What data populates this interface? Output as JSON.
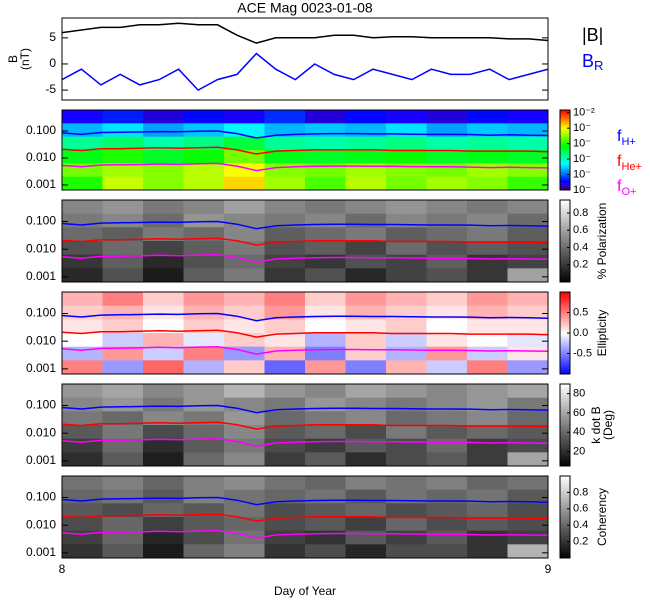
{
  "title": "ACE Mag 0023-01-08",
  "chart_data": [
    {
      "type": "line",
      "xlim": [
        8,
        9
      ],
      "ylim": [
        -6.9,
        8.8
      ],
      "yticks": [
        -5,
        0,
        5
      ],
      "ylabel": [
        "B",
        "(nT)"
      ],
      "x": [
        8.0,
        8.04,
        8.08,
        8.12,
        8.16,
        8.2,
        8.24,
        8.28,
        8.32,
        8.36,
        8.4,
        8.44,
        8.48,
        8.52,
        8.56,
        8.6,
        8.64,
        8.68,
        8.72,
        8.76,
        8.8,
        8.84,
        8.88,
        8.92,
        8.96,
        9.0
      ],
      "series": [
        {
          "name": "|B|",
          "color": "#000000",
          "values": [
            6,
            6.5,
            7,
            7,
            7.5,
            7.5,
            7.8,
            7.5,
            7.5,
            5.5,
            4,
            5,
            5,
            5,
            5.5,
            5.5,
            5,
            5.2,
            5.2,
            5,
            5,
            5,
            5,
            4.8,
            4.8,
            4.5
          ]
        },
        {
          "name": "B",
          "name_sub": "R",
          "color": "#0000ff",
          "values": [
            -3,
            -1,
            -4,
            -2,
            -4,
            -3,
            -1,
            -5,
            -3,
            -2,
            2,
            -1,
            -3,
            0,
            -2,
            -3,
            -1,
            -2,
            -3,
            -1,
            -2,
            -2,
            -1,
            -3,
            -2,
            -1
          ]
        }
      ]
    },
    {
      "type": "heatmap",
      "xlim": [
        8,
        9
      ],
      "ylim": [
        0.00065,
        0.6
      ],
      "ylog": true,
      "yticks": [
        {
          "value": 0.1,
          "label": "0.100"
        },
        {
          "value": 0.01,
          "label": "0.010"
        },
        {
          "value": 0.001,
          "label": "0.001"
        }
      ],
      "colormap": "rainbow",
      "zlog": true,
      "zlim": [
        1e-07,
        0.015
      ],
      "zticks": [
        {
          "value": 0.01,
          "label": "10⁻²"
        },
        {
          "value": 0.001,
          "label": "10⁻"
        },
        {
          "value": 0.0001,
          "label": "10⁻"
        },
        {
          "value": 1e-05,
          "label": "10⁻"
        },
        {
          "value": 1e-06,
          "label": "10⁻"
        },
        {
          "value": 1e-07,
          "label": "10⁻"
        }
      ],
      "z": [
        [
          3e-07,
          5e-07,
          2.5e-07,
          4e-07,
          3e-07,
          6e-07,
          2.5e-07,
          4e-07,
          3e-07,
          2.5e-07,
          4e-07,
          3e-07
        ],
        [
          2.5e-06,
          4e-06,
          2e-06,
          3e-06,
          5e-06,
          2.5e-06,
          3e-06,
          2.5e-06,
          4e-06,
          2e-06,
          3e-06,
          2.5e-06
        ],
        [
          1.6e-05,
          2.5e-05,
          1.3e-05,
          2e-05,
          4e-05,
          1.6e-05,
          1.3e-05,
          1.6e-05,
          2e-05,
          1.3e-05,
          1.6e-05,
          1.3e-05
        ],
        [
          6e-05,
          0.0001,
          5e-05,
          8e-05,
          0.00025,
          6e-05,
          5e-05,
          6e-05,
          8e-05,
          5e-05,
          6e-05,
          5e-05
        ],
        [
          0.00025,
          0.0004,
          0.0003,
          0.0005,
          0.001,
          0.0003,
          0.00025,
          0.0004,
          0.0003,
          0.00025,
          0.0004,
          0.0003
        ],
        [
          0.0001,
          0.0006,
          0.0003,
          0.0005,
          0.0016,
          0.0004,
          0.00016,
          0.0005,
          0.00025,
          0.0004,
          0.0003,
          0.00013
        ]
      ],
      "x": [
        8.0,
        8.04,
        8.08,
        8.12,
        8.16,
        8.2,
        8.24,
        8.28,
        8.32,
        8.36,
        8.4,
        8.44,
        8.48,
        8.52,
        8.56,
        8.6,
        8.64,
        8.68,
        8.72,
        8.76,
        8.8,
        8.84,
        8.88,
        8.92,
        8.96,
        9.0
      ],
      "series": [
        {
          "name": "f",
          "name_sub": "H+",
          "color": "#0000ff",
          "values": [
            0.085,
            0.075,
            0.088,
            0.09,
            0.092,
            0.095,
            0.093,
            0.098,
            0.1,
            0.08,
            0.055,
            0.07,
            0.075,
            0.078,
            0.08,
            0.08,
            0.078,
            0.078,
            0.076,
            0.075,
            0.075,
            0.074,
            0.07,
            0.072,
            0.07,
            0.068
          ]
        },
        {
          "name": "f",
          "name_sub": "He+",
          "color": "#ff0000",
          "values": [
            0.021,
            0.019,
            0.022,
            0.022,
            0.023,
            0.024,
            0.023,
            0.024,
            0.025,
            0.02,
            0.014,
            0.018,
            0.019,
            0.02,
            0.02,
            0.02,
            0.02,
            0.019,
            0.019,
            0.019,
            0.019,
            0.018,
            0.018,
            0.018,
            0.018,
            0.017
          ]
        },
        {
          "name": "f",
          "name_sub": "O+",
          "color": "#ff00ff",
          "values": [
            0.0053,
            0.0047,
            0.0055,
            0.0056,
            0.0057,
            0.006,
            0.0058,
            0.0061,
            0.0063,
            0.005,
            0.0034,
            0.0044,
            0.0047,
            0.0049,
            0.005,
            0.005,
            0.0049,
            0.0049,
            0.0048,
            0.0047,
            0.0047,
            0.0046,
            0.0044,
            0.0045,
            0.0044,
            0.0043
          ]
        }
      ]
    },
    {
      "type": "heatmap",
      "xlim": [
        8,
        9
      ],
      "ylim": [
        0.00065,
        0.6
      ],
      "ylog": true,
      "yticks": [
        {
          "value": 0.1,
          "label": "0.100"
        },
        {
          "value": 0.01,
          "label": "0.010"
        },
        {
          "value": 0.001,
          "label": "0.001"
        }
      ],
      "colormap": "gray",
      "zlim": [
        0,
        0.95
      ],
      "zticks": [
        0.2,
        0.4,
        0.6,
        0.8
      ],
      "zlabel": [
        "% Polarization"
      ],
      "z": [
        [
          0.5,
          0.55,
          0.45,
          0.5,
          0.6,
          0.5,
          0.45,
          0.5,
          0.55,
          0.5,
          0.45,
          0.5
        ],
        [
          0.45,
          0.5,
          0.4,
          0.55,
          0.5,
          0.45,
          0.5,
          0.4,
          0.5,
          0.45,
          0.5,
          0.4
        ],
        [
          0.4,
          0.35,
          0.45,
          0.4,
          0.5,
          0.35,
          0.4,
          0.45,
          0.35,
          0.4,
          0.45,
          0.35
        ],
        [
          0.3,
          0.4,
          0.25,
          0.35,
          0.45,
          0.3,
          0.35,
          0.25,
          0.4,
          0.3,
          0.35,
          0.3
        ],
        [
          0.2,
          0.35,
          0.15,
          0.3,
          0.4,
          0.25,
          0.2,
          0.3,
          0.25,
          0.35,
          0.2,
          0.25
        ],
        [
          0.15,
          0.3,
          0.1,
          0.35,
          0.45,
          0.2,
          0.3,
          0.15,
          0.25,
          0.3,
          0.2,
          0.6
        ]
      ]
    },
    {
      "type": "heatmap",
      "xlim": [
        8,
        9
      ],
      "ylim": [
        0.00065,
        0.6
      ],
      "ylog": true,
      "yticks": [
        {
          "value": 0.1,
          "label": "0.100"
        },
        {
          "value": 0.01,
          "label": "0.010"
        },
        {
          "value": 0.001,
          "label": "0.001"
        }
      ],
      "colormap": "bwr",
      "zlim": [
        -1,
        1
      ],
      "zticks": [
        0.5,
        {
          "value": 0,
          "label": "0.0"
        },
        -0.5
      ],
      "zlabel": [
        "Ellipticity"
      ],
      "z": [
        [
          0.3,
          0.5,
          0.2,
          0.4,
          0.3,
          0.5,
          0.2,
          0.4,
          0.3,
          0.2,
          0.4,
          0.3
        ],
        [
          0.2,
          0.3,
          0.1,
          0.3,
          0.2,
          0.4,
          0.1,
          0.3,
          0.2,
          0.1,
          0.3,
          0.2
        ],
        [
          0.1,
          0.2,
          0,
          0.2,
          0.1,
          0.2,
          0,
          0.1,
          0.2,
          0,
          0.1,
          0.1
        ],
        [
          0,
          -0.2,
          0.3,
          -0.1,
          0.2,
          0.1,
          -0.3,
          0.2,
          -0.2,
          0.1,
          0,
          -0.1
        ],
        [
          -0.3,
          0.4,
          -0.2,
          0.5,
          -0.4,
          0.3,
          -0.5,
          0.2,
          -0.3,
          0.4,
          -0.2,
          0.1
        ],
        [
          0.5,
          -0.4,
          0.6,
          -0.3,
          0.2,
          -0.6,
          0.4,
          -0.5,
          0.3,
          -0.2,
          0.5,
          -0.4
        ]
      ]
    },
    {
      "type": "heatmap",
      "xlim": [
        8,
        9
      ],
      "ylim": [
        0.00065,
        0.6
      ],
      "ylog": true,
      "yticks": [
        {
          "value": 0.1,
          "label": "0.100"
        },
        {
          "value": 0.01,
          "label": "0.010"
        },
        {
          "value": 0.001,
          "label": "0.001"
        }
      ],
      "colormap": "gray",
      "zlim": [
        5,
        90
      ],
      "zticks": [
        20,
        40,
        60,
        80
      ],
      "zlabel": [
        "k dot B",
        "(Deg)"
      ],
      "z": [
        [
          55,
          60,
          50,
          55,
          65,
          55,
          50,
          60,
          55,
          50,
          55,
          60
        ],
        [
          50,
          55,
          45,
          55,
          50,
          45,
          55,
          50,
          45,
          50,
          55,
          45
        ],
        [
          45,
          40,
          50,
          45,
          55,
          40,
          45,
          50,
          40,
          45,
          50,
          40
        ],
        [
          35,
          45,
          30,
          40,
          50,
          35,
          40,
          30,
          45,
          35,
          40,
          35
        ],
        [
          25,
          40,
          20,
          35,
          45,
          30,
          25,
          35,
          30,
          40,
          25,
          30
        ],
        [
          20,
          35,
          15,
          40,
          50,
          25,
          35,
          20,
          30,
          35,
          25,
          60
        ]
      ]
    },
    {
      "type": "heatmap",
      "xlim": [
        8,
        9
      ],
      "ylim": [
        0.00065,
        0.6
      ],
      "ylog": true,
      "yticks": [
        {
          "value": 0.1,
          "label": "0.100"
        },
        {
          "value": 0.01,
          "label": "0.010"
        },
        {
          "value": 0.001,
          "label": "0.001"
        }
      ],
      "colormap": "gray",
      "zlim": [
        0,
        1
      ],
      "zticks": [
        0.2,
        0.4,
        0.6,
        0.8
      ],
      "zlabel": [
        "Coherency"
      ],
      "xticks": [
        8,
        9
      ],
      "xlabel": "Day of Year",
      "z": [
        [
          0.45,
          0.5,
          0.4,
          0.5,
          0.55,
          0.45,
          0.4,
          0.5,
          0.45,
          0.5,
          0.4,
          0.45
        ],
        [
          0.4,
          0.45,
          0.35,
          0.5,
          0.45,
          0.4,
          0.45,
          0.35,
          0.45,
          0.4,
          0.45,
          0.35
        ],
        [
          0.35,
          0.3,
          0.4,
          0.35,
          0.45,
          0.3,
          0.35,
          0.4,
          0.3,
          0.35,
          0.4,
          0.3
        ],
        [
          0.3,
          0.4,
          0.25,
          0.35,
          0.4,
          0.3,
          0.35,
          0.25,
          0.4,
          0.3,
          0.35,
          0.3
        ],
        [
          0.25,
          0.4,
          0.15,
          0.3,
          0.45,
          0.25,
          0.2,
          0.35,
          0.25,
          0.35,
          0.2,
          0.25
        ],
        [
          0.2,
          0.35,
          0.1,
          0.4,
          0.5,
          0.2,
          0.3,
          0.15,
          0.3,
          0.3,
          0.2,
          0.7
        ]
      ]
    }
  ]
}
